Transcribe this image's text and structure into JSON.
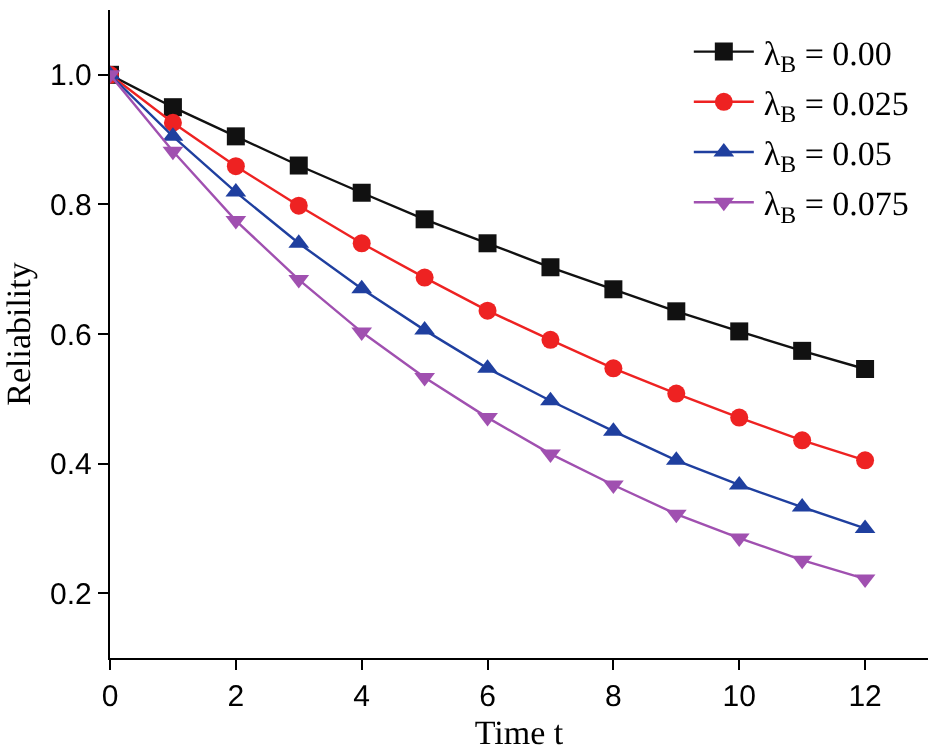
{
  "chart_data": {
    "type": "line",
    "xlabel": "Time t",
    "ylabel": "Reliability",
    "x": [
      0,
      1,
      2,
      3,
      4,
      5,
      6,
      7,
      8,
      9,
      10,
      11,
      12
    ],
    "series": [
      {
        "name": "λ$_{B}$ = 0.00",
        "color": "#111111",
        "marker": "square",
        "values": [
          1.0,
          0.95,
          0.905,
          0.86,
          0.818,
          0.777,
          0.74,
          0.703,
          0.669,
          0.635,
          0.604,
          0.574,
          0.546
        ]
      },
      {
        "name": "λ$_{B}$ = 0.025",
        "color": "#ee2222",
        "marker": "circle",
        "values": [
          1.0,
          0.926,
          0.859,
          0.798,
          0.74,
          0.687,
          0.636,
          0.591,
          0.547,
          0.508,
          0.471,
          0.436,
          0.405
        ]
      },
      {
        "name": "λ$_{B}$ = 0.05",
        "color": "#1f3f9f",
        "marker": "triangle",
        "values": [
          1.0,
          0.905,
          0.819,
          0.74,
          0.67,
          0.606,
          0.547,
          0.497,
          0.45,
          0.405,
          0.367,
          0.333,
          0.3
        ]
      },
      {
        "name": "λ$_{B}$ = 0.075",
        "color": "#a050b0",
        "marker": "triangle-down",
        "values": [
          1.0,
          0.882,
          0.775,
          0.684,
          0.603,
          0.533,
          0.471,
          0.415,
          0.367,
          0.322,
          0.285,
          0.251,
          0.222
        ]
      }
    ],
    "xlim": [
      0,
      13
    ],
    "xticks": [
      0,
      2,
      4,
      6,
      8,
      10,
      12
    ],
    "ylim": [
      0.1,
      1.1
    ],
    "yticks": [
      {
        "value": 0.2,
        "label": "0.2"
      },
      {
        "value": 0.4,
        "label": "0.4"
      },
      {
        "value": 0.6,
        "label": "0.6"
      },
      {
        "value": 0.8,
        "label": "0.8"
      },
      {
        "value": 1.0,
        "label": "1.0"
      }
    ],
    "legend": "top right",
    "line_style": "solid"
  }
}
